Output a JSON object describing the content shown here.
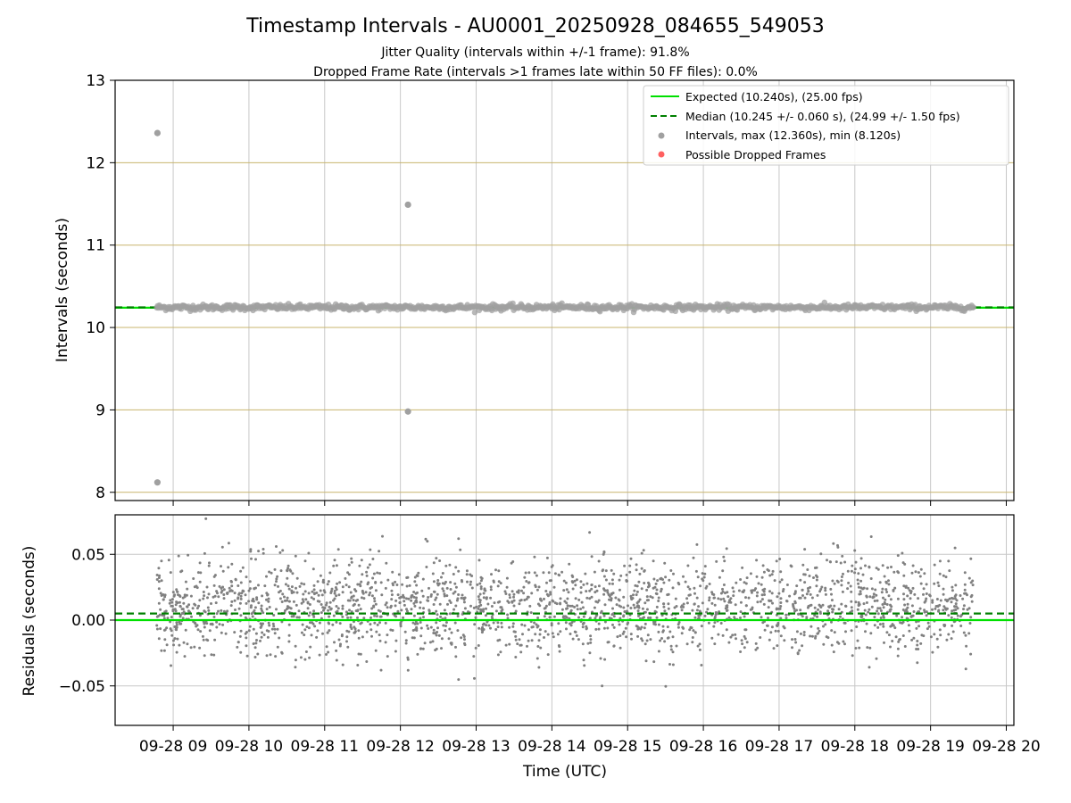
{
  "colors": {
    "expected": "#00e000",
    "median": "#008000",
    "points": "#808080",
    "dropped": "#ff4040",
    "hgrid_top": "#c8b46e",
    "vgrid": "#c8c8c8",
    "grid_bottom": "#c8c8c8"
  },
  "chart_data": [
    {
      "type": "scatter",
      "panel": "top",
      "title": "Timestamp Intervals - AU0001_20250928_084655_549053",
      "subtitle_lines": [
        "Jitter Quality (intervals within +/-1 frame): 91.8%",
        "Dropped Frame Rate (intervals >1 frames late within 50 FF files): 0.0%"
      ],
      "ylabel": "Intervals (seconds)",
      "ylim": [
        7.9,
        13.0
      ],
      "yticks": [
        8,
        9,
        10,
        11,
        12,
        13
      ],
      "ytick_labels": [
        "8",
        "9",
        "10",
        "11",
        "12",
        "13"
      ],
      "grid": true,
      "legend_position": "top-right",
      "legend": [
        {
          "label": "Expected (10.240s), (25.00 fps)",
          "kind": "solid-line",
          "color": "#00e000"
        },
        {
          "label": "Median (10.245 +/- 0.060 s), (24.99 +/- 1.50 fps)",
          "kind": "dashed-line",
          "color": "#008000"
        },
        {
          "label": "Intervals, max (12.360s), min (8.120s)",
          "kind": "marker",
          "color": "#a0a0a0"
        },
        {
          "label": "Possible Dropped Frames",
          "kind": "marker",
          "color": "#ff6060"
        }
      ],
      "expected_line": 10.24,
      "median_line": 10.245,
      "series": {
        "intervals_band": {
          "x_start": "2025-09-28T08:46:55",
          "x_end": "2025-09-28T19:34:00",
          "center": 10.245,
          "spread": 0.03
        },
        "outliers": [
          {
            "x": "2025-09-28T08:47:30",
            "y": 12.36
          },
          {
            "x": "2025-09-28T08:47:30",
            "y": 8.12
          },
          {
            "x": "2025-09-28T12:06:00",
            "y": 11.49
          },
          {
            "x": "2025-09-28T12:06:00",
            "y": 8.98
          }
        ],
        "dropped_frames": []
      }
    },
    {
      "type": "scatter",
      "panel": "bottom",
      "ylabel": "Residuals (seconds)",
      "xlabel": "Time (UTC)",
      "ylim": [
        -0.08,
        0.08
      ],
      "yticks": [
        -0.05,
        0.0,
        0.05
      ],
      "ytick_labels": [
        "−0.05",
        "0.00",
        "0.05"
      ],
      "grid": true,
      "expected_line": 0.0,
      "median_line": 0.005,
      "xlim": [
        "2025-09-28T08:14:00",
        "2025-09-28T20:06:00"
      ],
      "xticks": [
        "2025-09-28T09:00",
        "2025-09-28T10:00",
        "2025-09-28T11:00",
        "2025-09-28T12:00",
        "2025-09-28T13:00",
        "2025-09-28T14:00",
        "2025-09-28T15:00",
        "2025-09-28T16:00",
        "2025-09-28T17:00",
        "2025-09-28T18:00",
        "2025-09-28T19:00",
        "2025-09-28T20:00"
      ],
      "xtick_labels": [
        "09-28 09",
        "09-28 10",
        "09-28 11",
        "09-28 12",
        "09-28 13",
        "09-28 14",
        "09-28 15",
        "09-28 16",
        "09-28 17",
        "09-28 18",
        "09-28 19",
        "09-28 20"
      ],
      "series": {
        "residuals": {
          "x_start": "2025-09-28T08:46:55",
          "x_end": "2025-09-28T19:34:00",
          "levels": [
            0.0,
            0.02
          ],
          "spread": 0.075
        }
      }
    }
  ]
}
